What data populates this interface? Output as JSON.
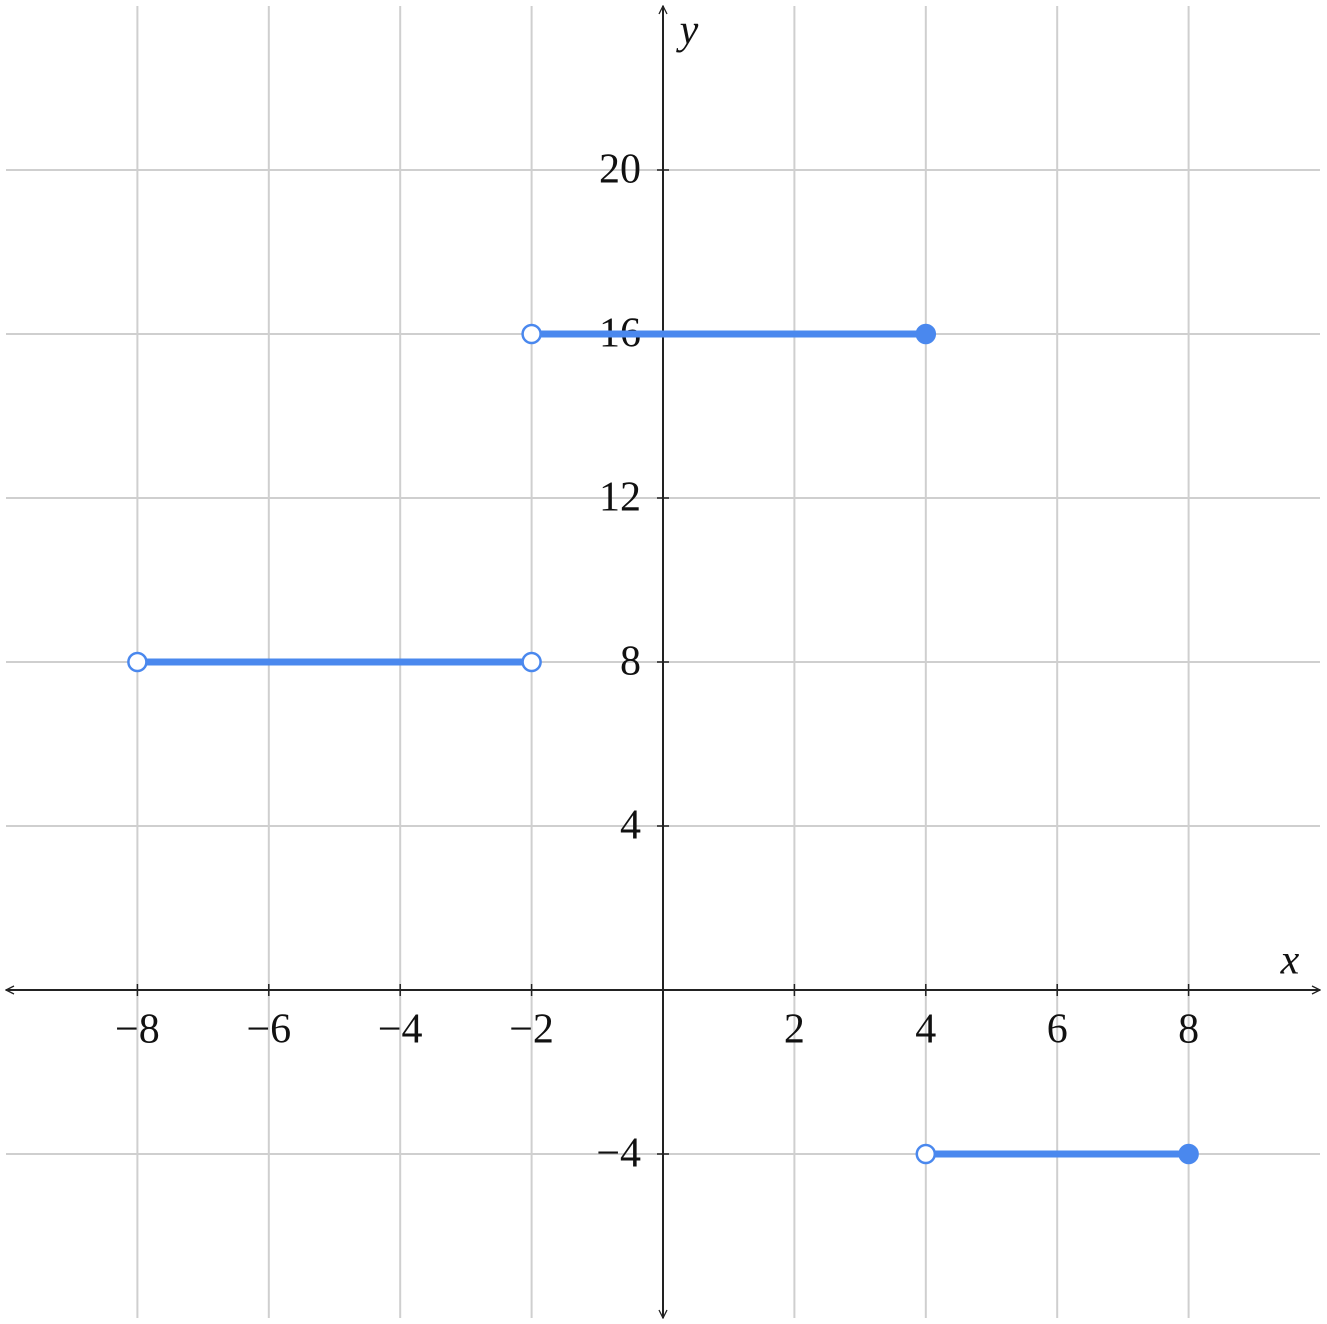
{
  "chart_data": {
    "type": "piecewise",
    "xlabel": "x",
    "ylabel": "y",
    "xlim": [
      -10,
      10
    ],
    "ylim": [
      -8,
      24
    ],
    "xticks": [
      {
        "value": -8,
        "label": "−8"
      },
      {
        "value": -6,
        "label": "−6"
      },
      {
        "value": -4,
        "label": "−4"
      },
      {
        "value": -2,
        "label": "−2"
      },
      2,
      4,
      6,
      8
    ],
    "yticks": [
      {
        "value": -4,
        "label": "−4"
      },
      4,
      8,
      12,
      16,
      20
    ],
    "grid": true,
    "color": "#4a88ee",
    "series": [
      {
        "x": [
          -8,
          -2
        ],
        "values": [
          8,
          8
        ],
        "endpoints": [
          "open",
          "open"
        ]
      },
      {
        "x": [
          -2,
          4
        ],
        "values": [
          16,
          16
        ],
        "endpoints": [
          "open",
          "closed"
        ]
      },
      {
        "x": [
          4,
          8
        ],
        "values": [
          -4,
          -4
        ],
        "endpoints": [
          "open",
          "closed"
        ]
      }
    ]
  }
}
